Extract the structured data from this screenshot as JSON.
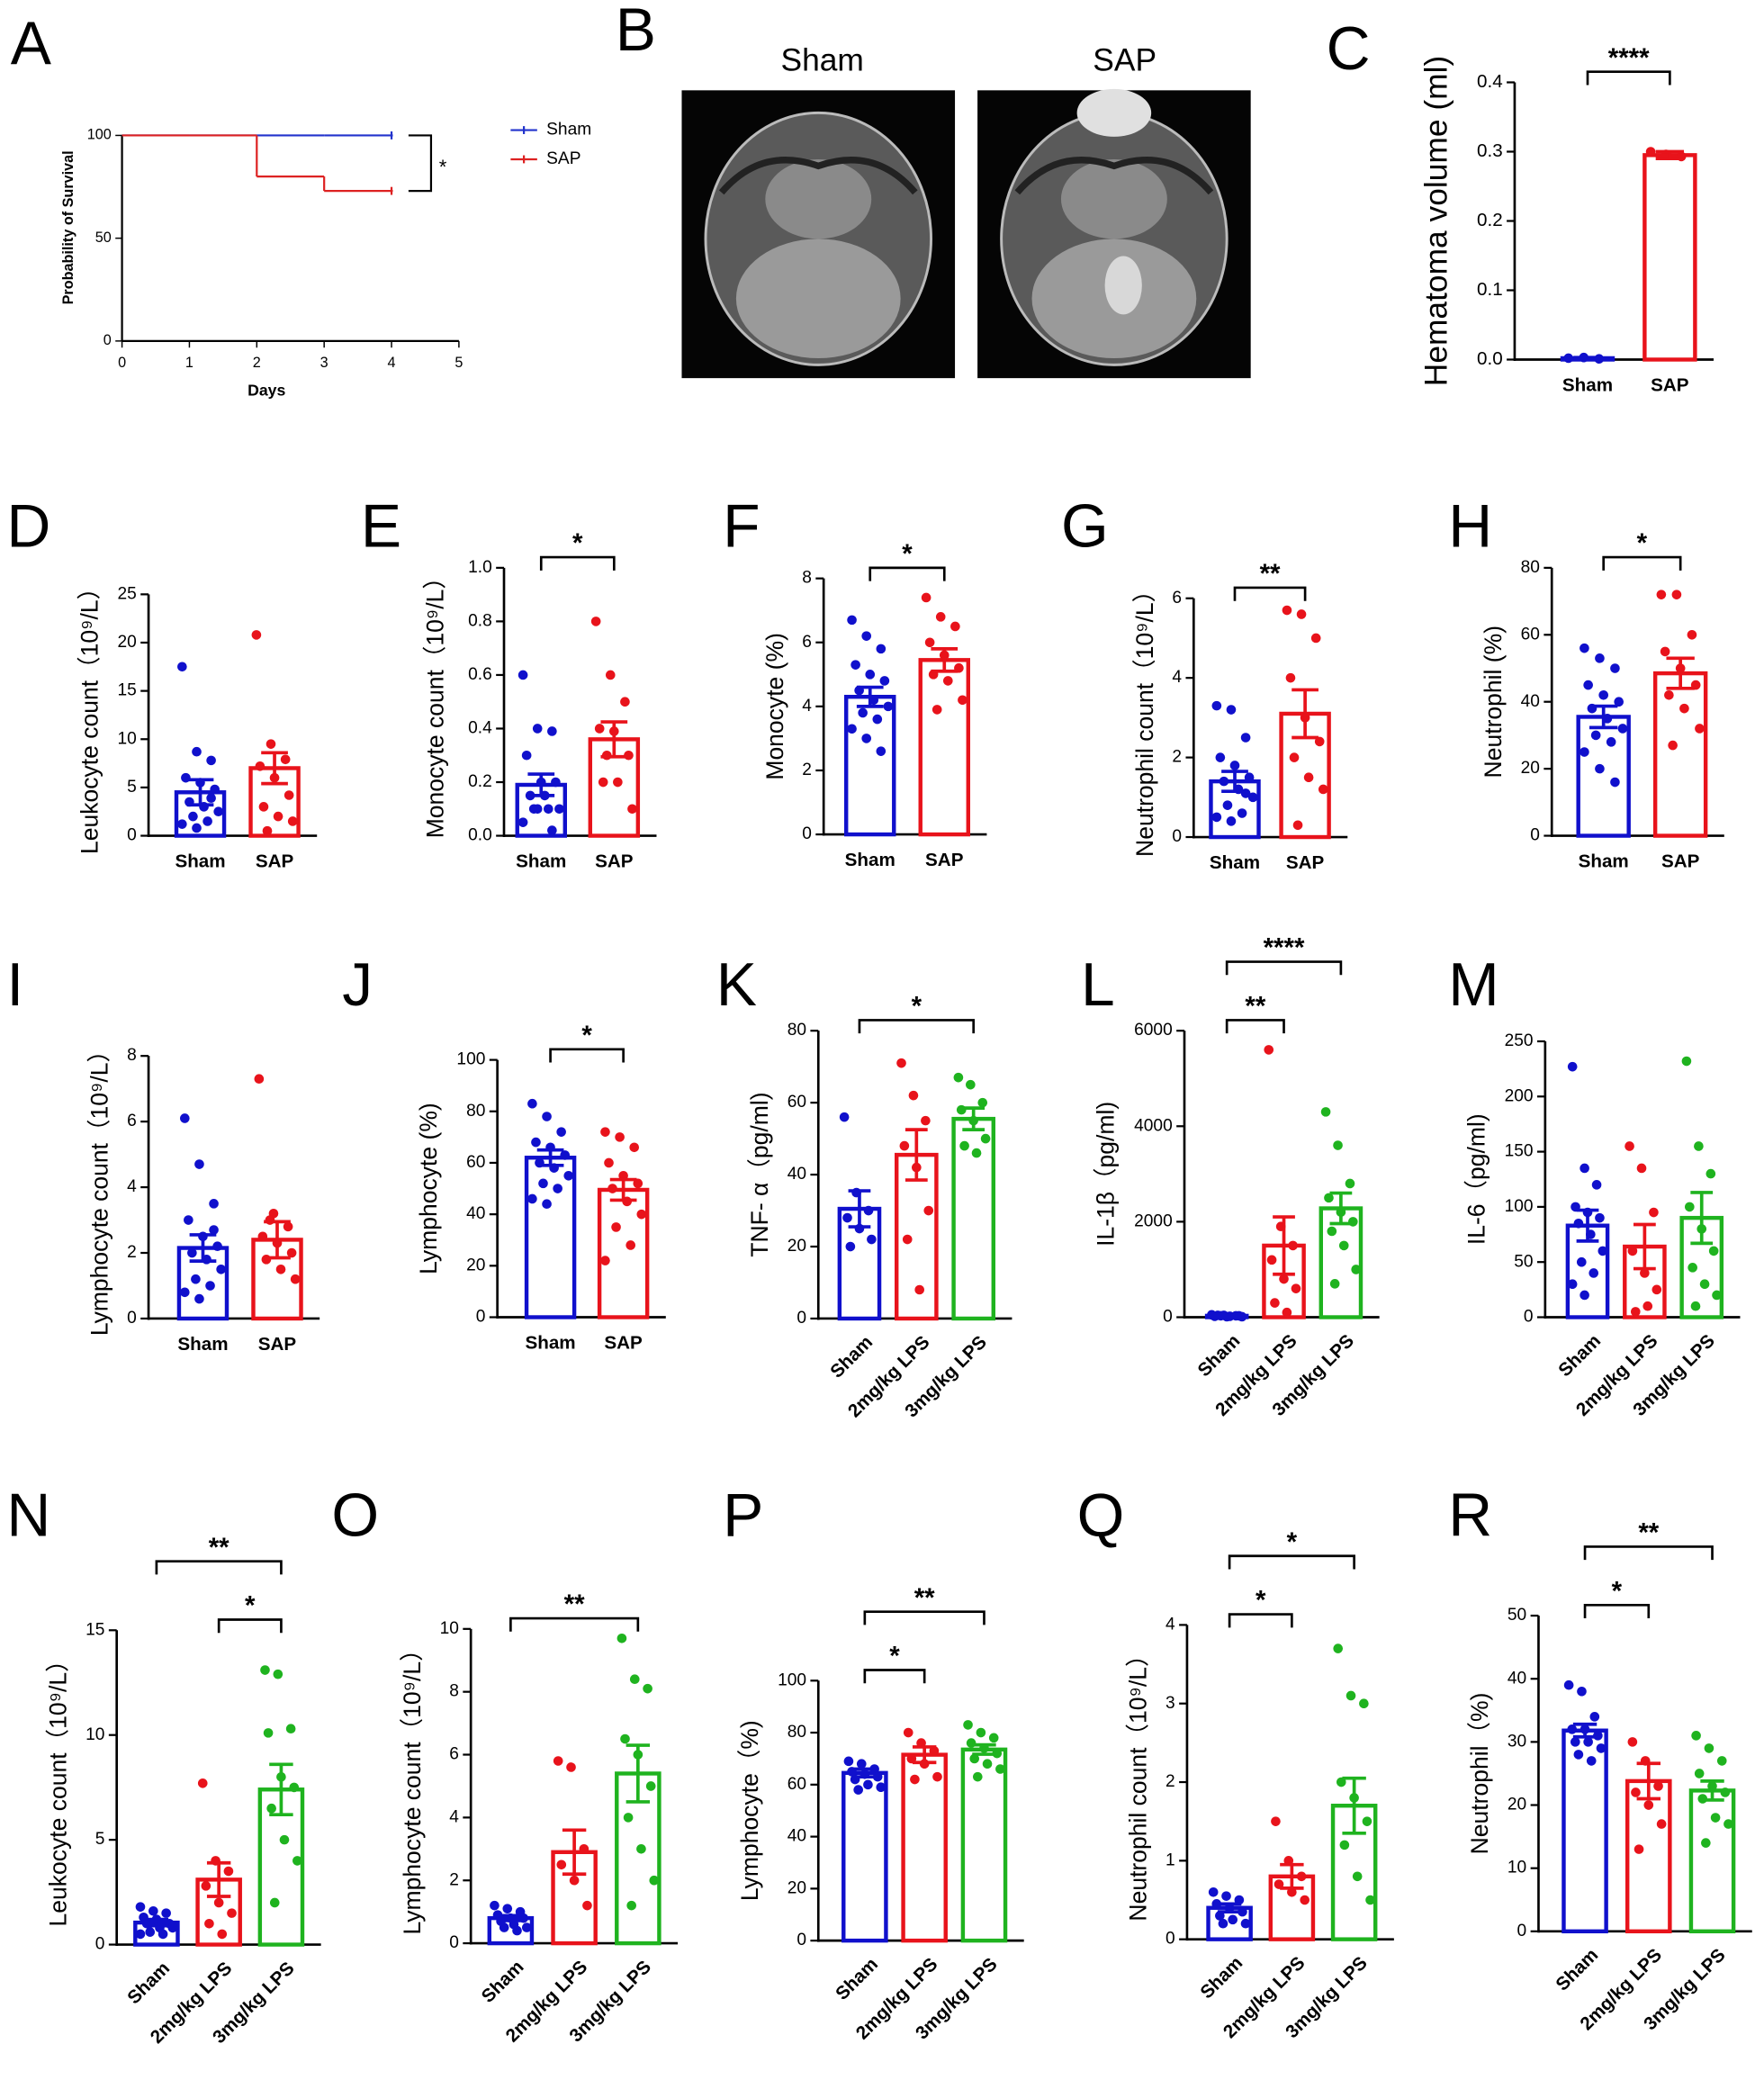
{
  "chart_data": [
    {
      "type": "line",
      "panel": "A",
      "xlabel": "Days",
      "ylabel": "Probability of Survival",
      "x": [
        0,
        1,
        2,
        3,
        4
      ],
      "series": [
        {
          "name": "Sham",
          "color": "#2233cc",
          "values": [
            100,
            100,
            100,
            100,
            100
          ]
        },
        {
          "name": "SAP",
          "color": "#dd2222",
          "values": [
            100,
            100,
            80,
            73,
            73
          ]
        }
      ],
      "xlim": [
        0,
        5
      ],
      "ylim": [
        0,
        100
      ],
      "xticks": [
        0,
        1,
        2,
        3,
        4,
        5
      ],
      "yticks": [
        0,
        50,
        100
      ],
      "step": true,
      "significance": "*"
    },
    {
      "type": "image",
      "panel": "B",
      "labels": [
        "Sham",
        "SAP"
      ]
    },
    {
      "type": "bar",
      "panel": "C",
      "ylabel": "Hematoma volume (ml)",
      "categories": [
        "Sham",
        "SAP"
      ],
      "colors": [
        "#1010cc",
        "#e8131b"
      ],
      "values": [
        0.002,
        0.295
      ],
      "errors": [
        0.001,
        0.005
      ],
      "points": [
        [
          0.002,
          0.003,
          0.001
        ],
        [
          0.3,
          0.296,
          0.293
        ]
      ],
      "ylim": [
        0,
        0.4
      ],
      "yticks": [
        {
          "value": 0,
          "label": "0.0"
        },
        0.1,
        0.2,
        0.3,
        0.4
      ],
      "significance": [
        {
          "pair": [
            "Sham",
            "SAP"
          ],
          "label": "****"
        }
      ]
    },
    {
      "type": "bar",
      "panel": "D",
      "ylabel": "Leukocyte count（10⁹/L）",
      "categories": [
        "Sham",
        "SAP"
      ],
      "colors": [
        "#1010cc",
        "#e8131b"
      ],
      "values": [
        4.5,
        7.0
      ],
      "errors": [
        1.3,
        1.6
      ],
      "points": [
        [
          17.5,
          8.7,
          7.8,
          6.0,
          5.5,
          4.8,
          3.5,
          3.0,
          2.5,
          2.0,
          1.5,
          1.2,
          0.8,
          3.9
        ],
        [
          20.8,
          9.5,
          7.9,
          7.2,
          6.0,
          4.2,
          3.0,
          2.0,
          1.5,
          0.5
        ]
      ],
      "ylim": [
        0,
        25
      ],
      "yticks": [
        0,
        5,
        10,
        15,
        20,
        25
      ],
      "significance": []
    },
    {
      "type": "bar",
      "panel": "E",
      "ylabel": "Monocyte count（10⁹/L）",
      "categories": [
        "Sham",
        "SAP"
      ],
      "colors": [
        "#1010cc",
        "#e8131b"
      ],
      "values": [
        0.19,
        0.36
      ],
      "errors": [
        0.04,
        0.065
      ],
      "points": [
        [
          0.6,
          0.4,
          0.39,
          0.3,
          0.2,
          0.2,
          0.15,
          0.15,
          0.1,
          0.1,
          0.1,
          0.05,
          0.1,
          0.02
        ],
        [
          0.8,
          0.6,
          0.5,
          0.4,
          0.39,
          0.3,
          0.2,
          0.2,
          0.1,
          0.3
        ]
      ],
      "ylim": [
        0,
        1
      ],
      "yticks": [
        {
          "value": 0,
          "label": "0.0"
        },
        0.2,
        0.4,
        0.6,
        0.8,
        {
          "value": 1,
          "label": "1.0"
        }
      ],
      "significance": [
        {
          "pair": [
            "Sham",
            "SAP"
          ],
          "label": "*"
        }
      ]
    },
    {
      "type": "bar",
      "panel": "F",
      "ylabel": "Monocyte (%)",
      "categories": [
        "Sham",
        "SAP"
      ],
      "colors": [
        "#1010cc",
        "#e8131b"
      ],
      "values": [
        4.3,
        5.45
      ],
      "errors": [
        0.3,
        0.35
      ],
      "points": [
        [
          6.7,
          6.2,
          5.8,
          5.3,
          5.0,
          4.8,
          4.5,
          4.2,
          4.0,
          3.8,
          3.6,
          3.3,
          3.0,
          2.6
        ],
        [
          7.4,
          6.8,
          6.5,
          6.0,
          5.6,
          5.2,
          5.0,
          4.8,
          4.2,
          3.9
        ]
      ],
      "ylim": [
        0,
        8
      ],
      "yticks": [
        0,
        2,
        4,
        6,
        8
      ],
      "significance": [
        {
          "pair": [
            "Sham",
            "SAP"
          ],
          "label": "*"
        }
      ]
    },
    {
      "type": "bar",
      "panel": "G",
      "ylabel": "Neutrophil count（10⁹/L）",
      "categories": [
        "Sham",
        "SAP"
      ],
      "colors": [
        "#1010cc",
        "#e8131b"
      ],
      "values": [
        1.4,
        3.1
      ],
      "errors": [
        0.25,
        0.6
      ],
      "points": [
        [
          3.3,
          3.2,
          2.5,
          2.0,
          1.8,
          1.5,
          1.4,
          1.2,
          1.0,
          0.8,
          0.6,
          0.5,
          0.4,
          1.1
        ],
        [
          5.7,
          5.6,
          5.0,
          4.0,
          3.0,
          2.4,
          2.0,
          1.5,
          1.2,
          0.3
        ]
      ],
      "ylim": [
        0,
        6
      ],
      "yticks": [
        0,
        2,
        4,
        6
      ],
      "significance": [
        {
          "pair": [
            "Sham",
            "SAP"
          ],
          "label": "**"
        }
      ]
    },
    {
      "type": "bar",
      "panel": "H",
      "ylabel": "Neutrophil (%)",
      "categories": [
        "Sham",
        "SAP"
      ],
      "colors": [
        "#1010cc",
        "#e8131b"
      ],
      "values": [
        35.5,
        48.5
      ],
      "errors": [
        3.2,
        4.5
      ],
      "points": [
        [
          56,
          53,
          50,
          45,
          42,
          40,
          38,
          35,
          32,
          30,
          28,
          25,
          20,
          16
        ],
        [
          72,
          72,
          60,
          55,
          50,
          45,
          42,
          38,
          32,
          27
        ]
      ],
      "ylim": [
        0,
        80
      ],
      "yticks": [
        0,
        20,
        40,
        60,
        80
      ],
      "significance": [
        {
          "pair": [
            "Sham",
            "SAP"
          ],
          "label": "*"
        }
      ]
    },
    {
      "type": "bar",
      "panel": "I",
      "ylabel": "Lymphocyte count（10⁹/L）",
      "categories": [
        "Sham",
        "SAP"
      ],
      "colors": [
        "#1010cc",
        "#e8131b"
      ],
      "values": [
        2.15,
        2.4
      ],
      "errors": [
        0.4,
        0.55
      ],
      "points": [
        [
          6.1,
          4.7,
          3.5,
          3.0,
          2.5,
          2.2,
          2.0,
          1.8,
          1.5,
          1.2,
          1.0,
          0.8,
          0.6,
          2.7
        ],
        [
          7.3,
          3.2,
          2.8,
          2.5,
          2.3,
          2.0,
          1.8,
          1.5,
          1.2,
          3.0
        ]
      ],
      "ylim": [
        0,
        8
      ],
      "yticks": [
        0,
        2,
        4,
        6,
        8
      ],
      "significance": []
    },
    {
      "type": "bar",
      "panel": "J",
      "ylabel": "Lymphocyte (%)",
      "categories": [
        "Sham",
        "SAP"
      ],
      "colors": [
        "#1010cc",
        "#e8131b"
      ],
      "values": [
        62,
        49.5
      ],
      "errors": [
        3,
        4
      ],
      "points": [
        [
          83,
          78,
          72,
          68,
          66,
          63,
          60,
          58,
          55,
          52,
          50,
          46,
          44
        ],
        [
          72,
          70,
          66,
          60,
          55,
          52,
          50,
          45,
          40,
          35,
          28,
          22
        ]
      ],
      "ylim": [
        0,
        100
      ],
      "yticks": [
        0,
        20,
        40,
        60,
        80,
        100
      ],
      "significance": [
        {
          "pair": [
            "Sham",
            "SAP"
          ],
          "label": "*"
        }
      ]
    },
    {
      "type": "bar",
      "panel": "K",
      "ylabel": "TNF- α（pg/ml)",
      "categories": [
        "Sham",
        "2mg/kg LPS",
        "3mg/kg LPS"
      ],
      "colors": [
        "#1010cc",
        "#e8131b",
        "#1fb31f"
      ],
      "values": [
        30.5,
        45.5,
        55.5
      ],
      "errors": [
        5,
        7,
        3
      ],
      "points": [
        [
          56,
          35,
          30,
          28,
          25,
          22,
          20
        ],
        [
          71,
          62,
          55,
          48,
          42,
          30,
          22,
          8
        ],
        [
          67,
          65,
          60,
          58,
          55,
          50,
          48,
          46
        ]
      ],
      "ylim": [
        0,
        80
      ],
      "yticks": [
        0,
        20,
        40,
        60,
        80
      ],
      "significance": [
        {
          "pair": [
            "Sham",
            "3mg/kg LPS"
          ],
          "label": "*"
        }
      ]
    },
    {
      "type": "bar",
      "panel": "L",
      "ylabel": "IL-1β（pg/ml)",
      "categories": [
        "Sham",
        "2mg/kg LPS",
        "3mg/kg LPS"
      ],
      "colors": [
        "#1010cc",
        "#e8131b",
        "#1fb31f"
      ],
      "values": [
        30,
        1500,
        2280
      ],
      "errors": [
        10,
        600,
        320
      ],
      "points": [
        [
          50,
          40,
          30,
          20,
          10,
          30,
          40,
          20,
          10,
          30
        ],
        [
          5600,
          1900,
          1500,
          1200,
          800,
          600,
          300,
          100
        ],
        [
          4300,
          3600,
          2800,
          2500,
          2200,
          2000,
          1800,
          1500,
          1000,
          700
        ]
      ],
      "ylim": [
        0,
        6000
      ],
      "yticks": [
        0,
        2000,
        4000,
        6000
      ],
      "significance": [
        {
          "pair": [
            "Sham",
            "2mg/kg LPS"
          ],
          "label": "**"
        },
        {
          "pair": [
            "Sham",
            "3mg/kg LPS"
          ],
          "label": "****"
        }
      ]
    },
    {
      "type": "bar",
      "panel": "M",
      "ylabel": "IL-6（pg/ml)",
      "categories": [
        "Sham",
        "2mg/kg LPS",
        "3mg/kg LPS"
      ],
      "colors": [
        "#1010cc",
        "#e8131b",
        "#1fb31f"
      ],
      "values": [
        83,
        64,
        90
      ],
      "errors": [
        14,
        20,
        23
      ],
      "points": [
        [
          227,
          135,
          120,
          100,
          95,
          90,
          85,
          75,
          60,
          50,
          40,
          30,
          20
        ],
        [
          155,
          135,
          95,
          60,
          40,
          25,
          5,
          10
        ],
        [
          232,
          155,
          130,
          100,
          80,
          60,
          45,
          30,
          20,
          10
        ]
      ],
      "ylim": [
        0,
        250
      ],
      "yticks": [
        0,
        50,
        100,
        150,
        200,
        250
      ],
      "significance": []
    },
    {
      "type": "bar",
      "panel": "N",
      "ylabel": "Leukocyte count（10⁹/L）",
      "categories": [
        "Sham",
        "2mg/kg LPS",
        "3mg/kg LPS"
      ],
      "colors": [
        "#1010cc",
        "#e8131b",
        "#1fb31f"
      ],
      "values": [
        1.05,
        3.1,
        7.4
      ],
      "errors": [
        0.15,
        0.8,
        1.2
      ],
      "points": [
        [
          1.8,
          1.6,
          1.5,
          1.3,
          1.2,
          1.0,
          1.0,
          0.8,
          0.8,
          0.6,
          0.5,
          0.5
        ],
        [
          7.7,
          4.0,
          3.5,
          2.8,
          2.0,
          1.5,
          1.0,
          0.5
        ],
        [
          13.1,
          12.9,
          10.3,
          10.1,
          8.0,
          7.5,
          6.5,
          5.0,
          4.0,
          2.0
        ]
      ],
      "ylim": [
        0,
        15
      ],
      "yticks": [
        0,
        5,
        10,
        15
      ],
      "significance": [
        {
          "pair": [
            "2mg/kg LPS",
            "3mg/kg LPS"
          ],
          "label": "*"
        },
        {
          "pair": [
            "Sham",
            "3mg/kg LPS"
          ],
          "label": "**"
        }
      ]
    },
    {
      "type": "bar",
      "panel": "O",
      "ylabel": "Lymphocyte count（10⁹/L）",
      "categories": [
        "Sham",
        "2mg/kg LPS",
        "3mg/kg LPS"
      ],
      "colors": [
        "#1010cc",
        "#e8131b",
        "#1fb31f"
      ],
      "values": [
        0.8,
        2.9,
        5.4
      ],
      "errors": [
        0.08,
        0.7,
        0.9
      ],
      "points": [
        [
          1.2,
          1.1,
          1.0,
          0.9,
          0.8,
          0.8,
          0.7,
          0.6,
          0.5,
          0.5,
          0.4
        ],
        [
          5.8,
          5.6,
          3.0,
          2.5,
          2.0,
          1.2
        ],
        [
          9.7,
          8.4,
          8.1,
          6.5,
          6.0,
          5.0,
          4.0,
          3.0,
          2.0,
          1.2
        ]
      ],
      "ylim": [
        0,
        10
      ],
      "yticks": [
        0,
        2,
        4,
        6,
        8,
        10
      ],
      "significance": [
        {
          "pair": [
            "Sham",
            "3mg/kg LPS"
          ],
          "label": "**"
        }
      ]
    },
    {
      "type": "bar",
      "panel": "P",
      "ylabel": "Lymphocyte（%)",
      "categories": [
        "Sham",
        "2mg/kg LPS",
        "3mg/kg LPS"
      ],
      "colors": [
        "#1010cc",
        "#e8131b",
        "#1fb31f"
      ],
      "values": [
        64.5,
        71.5,
        73.5
      ],
      "errors": [
        1.5,
        3,
        1.8
      ],
      "points": [
        [
          69,
          68,
          66,
          65,
          64,
          63,
          62,
          60,
          59,
          58
        ],
        [
          80,
          76,
          73,
          70,
          68,
          63,
          62
        ],
        [
          83,
          80,
          78,
          76,
          74,
          72,
          70,
          68,
          66,
          63
        ]
      ],
      "ylim": [
        0,
        100
      ],
      "yticks": [
        0,
        20,
        40,
        60,
        80,
        100
      ],
      "significance": [
        {
          "pair": [
            "Sham",
            "2mg/kg LPS"
          ],
          "label": "*"
        },
        {
          "pair": [
            "Sham",
            "3mg/kg LPS"
          ],
          "label": "**"
        }
      ]
    },
    {
      "type": "bar",
      "panel": "Q",
      "ylabel": "Neutrophil count（10⁹/L）",
      "categories": [
        "Sham",
        "2mg/kg LPS",
        "3mg/kg LPS"
      ],
      "colors": [
        "#1010cc",
        "#e8131b",
        "#1fb31f"
      ],
      "values": [
        0.4,
        0.8,
        1.7
      ],
      "errors": [
        0.05,
        0.15,
        0.35
      ],
      "points": [
        [
          0.6,
          0.55,
          0.5,
          0.45,
          0.4,
          0.35,
          0.3,
          0.25,
          0.2,
          0.2
        ],
        [
          1.5,
          1.0,
          0.8,
          0.7,
          0.6,
          0.5
        ],
        [
          3.7,
          3.1,
          3.0,
          2.0,
          1.8,
          1.5,
          1.2,
          0.8,
          0.5
        ]
      ],
      "ylim": [
        0,
        4
      ],
      "yticks": [
        0,
        1,
        2,
        3,
        4
      ],
      "significance": [
        {
          "pair": [
            "Sham",
            "2mg/kg LPS"
          ],
          "label": "*"
        },
        {
          "pair": [
            "Sham",
            "3mg/kg LPS"
          ],
          "label": "*"
        }
      ]
    },
    {
      "type": "bar",
      "panel": "R",
      "ylabel": "Neutrophil（%)",
      "categories": [
        "Sham",
        "2mg/kg LPS",
        "3mg/kg LPS"
      ],
      "colors": [
        "#1010cc",
        "#e8131b",
        "#1fb31f"
      ],
      "values": [
        31.8,
        23.8,
        22.3
      ],
      "errors": [
        1,
        2.8,
        1.5
      ],
      "points": [
        [
          39,
          38,
          34,
          32,
          32,
          31,
          30,
          30,
          29,
          28,
          27
        ],
        [
          30,
          27,
          23,
          22,
          20,
          17,
          13
        ],
        [
          31,
          29,
          27,
          25,
          23,
          22,
          21,
          18,
          17,
          14
        ]
      ],
      "ylim": [
        0,
        50
      ],
      "yticks": [
        0,
        10,
        20,
        30,
        40,
        50
      ],
      "significance": [
        {
          "pair": [
            "Sham",
            "2mg/kg LPS"
          ],
          "label": "*"
        },
        {
          "pair": [
            "Sham",
            "3mg/kg LPS"
          ],
          "label": "**"
        }
      ]
    }
  ]
}
